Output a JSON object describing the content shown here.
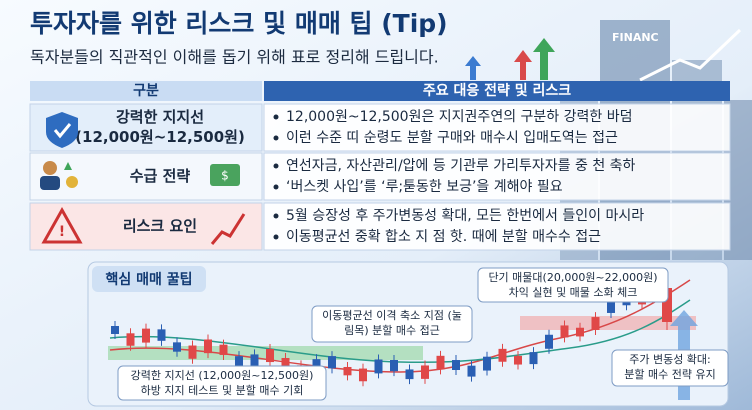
{
  "header": {
    "title": "투자자를 위한 리스크 및 매매 팁 (Tip)",
    "subtitle": "독자분들의 직관적인 이해를 돕기 위해 표로 정리해 드립니다.",
    "sign": "FINANC"
  },
  "table": {
    "columns": [
      "구분",
      "주요 대응 전략 및 리스크"
    ],
    "rows": [
      {
        "label": [
          "강력한 지지선",
          "(12,000원~12,500원)"
        ],
        "bullets": [
          "12,000원~12,500원은 지지권주연의 구분하 강력한 바덤",
          "이런 수준 띠 순령도 분할 구매와 매수시 입매도역는 접근"
        ]
      },
      {
        "label": [
          "수급 전략"
        ],
        "bullets": [
          "연선자금, 자산관리/압에 등 기관루 가리투자자를 중 천 축하",
          "‘버스켓 사입’를 ‘루;툳동한 보긍’을 계해야 필요"
        ]
      },
      {
        "label": [
          "리스크 요인"
        ],
        "bullets": [
          "5월 승장성 후 주가변동성 확대, 모든 한번에서 들인이 마시라",
          "이동평균선 중확 합소 지 점 핫. 때에 분할 매수수 접근"
        ]
      }
    ]
  },
  "tips": {
    "title": "핵심 매매 꿀팁",
    "callouts": [
      [
        "단기 매물대(20,000원~22,000원)",
        "차익 실현 및 매물 소화 체크"
      ],
      [
        "이동평균선 이격 축소 지점 (눌",
        "림목) 분할 매수 접근"
      ],
      [
        "강력한 지지선 (12,000원~12,500원)",
        "하방 지지 테스트 및 분할 매수 기회"
      ],
      [
        "주가 변동성 확대:",
        "분할 매수 전략 유지"
      ]
    ]
  }
}
